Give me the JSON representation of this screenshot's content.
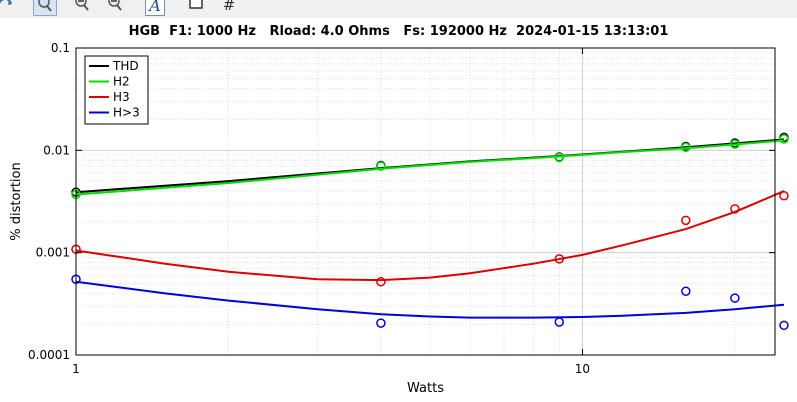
{
  "toolbar": {
    "items": [
      {
        "name": "rotate-icon"
      },
      {
        "name": "zoom-tool-icon",
        "active": true
      },
      {
        "name": "zoom-in-icon"
      },
      {
        "name": "zoom-out-icon"
      },
      {
        "name": "text-tool-icon",
        "glyph": "A"
      },
      {
        "name": "square-icon"
      },
      {
        "name": "grid-icon",
        "glyph": "#"
      }
    ]
  },
  "chart_data": {
    "type": "line",
    "title": "HGB  F1: 1000 Hz   Rload: 4.0 Ohms   Fs: 192000 Hz  2024-01-15 13:13:01",
    "xlabel": "Watts",
    "ylabel": "% distortion",
    "xscale": "log",
    "yscale": "log",
    "xlim": [
      1,
      24
    ],
    "ylim": [
      0.0001,
      0.1
    ],
    "xticks": [
      {
        "value": 1,
        "label": "1"
      },
      {
        "value": 10,
        "label": "10"
      }
    ],
    "yticks": [
      {
        "value": 0.1,
        "label": "0.1"
      },
      {
        "value": 0.01,
        "label": "0.01"
      },
      {
        "value": 0.001,
        "label": "0.001"
      },
      {
        "value": 0.0001,
        "label": "0.0001"
      }
    ],
    "grid": true,
    "legend_position": "top-left",
    "series": [
      {
        "name": "THD",
        "color": "#000000",
        "points_x": [
          1,
          4,
          9,
          16,
          20,
          25
        ],
        "points_y": [
          0.0039,
          0.0071,
          0.0086,
          0.0109,
          0.0118,
          0.0134
        ],
        "fit_x": [
          1,
          2,
          4,
          6,
          9,
          12,
          16,
          20,
          25
        ],
        "fit_y": [
          0.0039,
          0.005,
          0.0067,
          0.0078,
          0.0088,
          0.0097,
          0.0107,
          0.0117,
          0.0128
        ]
      },
      {
        "name": "H2",
        "color": "#00dd00",
        "points_x": [
          1,
          4,
          9,
          16,
          20,
          25
        ],
        "points_y": [
          0.0037,
          0.007,
          0.0085,
          0.0107,
          0.0115,
          0.0129
        ],
        "fit_x": [
          1,
          2,
          4,
          6,
          9,
          12,
          16,
          20,
          25
        ],
        "fit_y": [
          0.0037,
          0.0048,
          0.0066,
          0.0077,
          0.0087,
          0.0096,
          0.0105,
          0.0114,
          0.0125
        ]
      },
      {
        "name": "H3",
        "color": "#dd0000",
        "points_x": [
          1,
          4,
          9,
          16,
          20,
          25
        ],
        "points_y": [
          0.00108,
          0.00052,
          0.00087,
          0.00207,
          0.00268,
          0.0036
        ],
        "fit_x": [
          1,
          1.5,
          2,
          3,
          4,
          5,
          6,
          8,
          10,
          12,
          16,
          20,
          25
        ],
        "fit_y": [
          0.00105,
          0.00078,
          0.00065,
          0.00055,
          0.00054,
          0.00057,
          0.00063,
          0.00078,
          0.00095,
          0.00118,
          0.0017,
          0.0025,
          0.004
        ]
      },
      {
        "name": "H>3",
        "color": "#0000dd",
        "points_x": [
          1,
          4,
          9,
          16,
          20,
          25
        ],
        "points_y": [
          0.00055,
          0.000205,
          0.00021,
          0.00042,
          0.00036,
          0.000195
        ],
        "fit_x": [
          1,
          1.5,
          2,
          3,
          4,
          5,
          6,
          8,
          10,
          12,
          16,
          20,
          25
        ],
        "fit_y": [
          0.00052,
          0.0004,
          0.00034,
          0.00028,
          0.00025,
          0.000238,
          0.000232,
          0.000232,
          0.000235,
          0.000242,
          0.000258,
          0.00028,
          0.00031
        ]
      }
    ]
  }
}
